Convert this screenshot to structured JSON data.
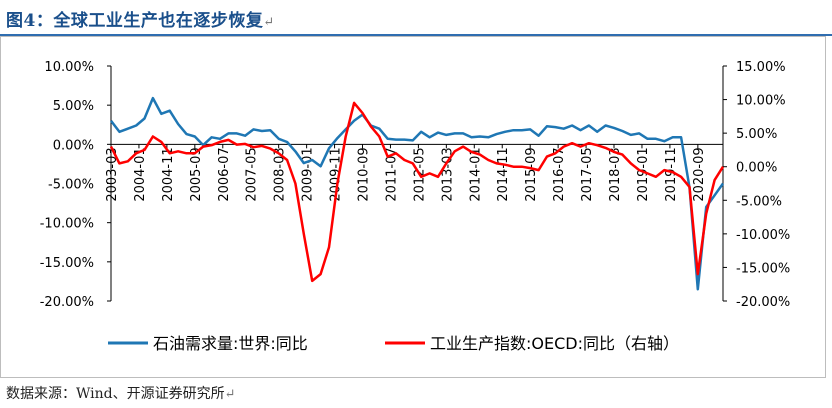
{
  "title": "图4：全球工业生产也在逐步恢复",
  "return_mark": "↵",
  "source": "数据来源：Wind、开源证券研究所",
  "chart_data": {
    "type": "line",
    "title": "",
    "xlabel": "",
    "ylabel": "",
    "grid": false,
    "legend_position": "bottom",
    "x_tick_labels": [
      "2003-03",
      "2004-01",
      "2004-11",
      "2005-09",
      "2006-07",
      "2007-05",
      "2008-03",
      "2009-01",
      "2009-11",
      "2010-09",
      "2011-07",
      "2012-05",
      "2013-03",
      "2014-01",
      "2014-11",
      "2015-09",
      "2016-07",
      "2017-05",
      "2018-03",
      "2019-01",
      "2019-11",
      "2020-09"
    ],
    "left_axis": {
      "ylim": [
        -20,
        10
      ],
      "ticks": [
        10,
        5,
        0,
        -5,
        -10,
        -15,
        -20
      ],
      "tick_labels": [
        "10.00%",
        "5.00%",
        "0.00%",
        "-5.00%",
        "-10.00%",
        "-15.00%",
        "-20.00%"
      ]
    },
    "right_axis": {
      "ylim": [
        -20,
        15
      ],
      "ticks": [
        15,
        10,
        5,
        0,
        -5,
        -10,
        -15,
        -20
      ],
      "tick_labels": [
        "15.00%",
        "10.00%",
        "5.00%",
        "0.00%",
        "-5.00%",
        "-10.00%",
        "-15.00%",
        "-20.00%"
      ]
    },
    "x_start": "2003-03",
    "months_per_point": 3,
    "series": [
      {
        "name": "石油需求量:世界:同比",
        "axis": "left",
        "color": "#1f77b4",
        "values": [
          3.0,
          1.6,
          2.0,
          2.4,
          3.3,
          5.9,
          3.9,
          4.3,
          2.6,
          1.3,
          1.0,
          -0.1,
          0.9,
          0.7,
          1.4,
          1.4,
          1.1,
          1.9,
          1.7,
          1.8,
          0.7,
          0.3,
          -0.9,
          -2.4,
          -2.0,
          -2.8,
          -0.5,
          0.8,
          1.9,
          3.0,
          3.8,
          2.4,
          2.0,
          0.7,
          0.6,
          0.6,
          0.5,
          1.6,
          0.9,
          1.5,
          1.2,
          1.4,
          1.4,
          0.9,
          1.0,
          0.9,
          1.3,
          1.6,
          1.8,
          1.8,
          1.9,
          1.1,
          2.3,
          2.2,
          2.0,
          2.4,
          1.8,
          2.4,
          1.6,
          2.4,
          2.1,
          1.7,
          1.2,
          1.4,
          0.7,
          0.7,
          0.4,
          0.9,
          0.9,
          -5.5,
          -18.5,
          -8.0,
          -6.5,
          -5.0
        ]
      },
      {
        "name": "工业生产指数:OECD:同比（右轴）",
        "axis": "right",
        "color": "#ff0000",
        "values": [
          3.0,
          0.5,
          0.8,
          2.0,
          2.5,
          4.5,
          3.7,
          2.0,
          2.3,
          2.0,
          2.0,
          3.0,
          3.2,
          3.7,
          4.0,
          3.3,
          3.4,
          2.9,
          3.1,
          2.7,
          2.0,
          1.0,
          -2.5,
          -10.0,
          -17.0,
          -16.0,
          -12.0,
          -2.5,
          4.5,
          9.5,
          8.0,
          6.0,
          4.5,
          1.5,
          2.0,
          1.0,
          0.5,
          -1.5,
          -1.0,
          -1.5,
          0.5,
          2.3,
          3.0,
          2.2,
          1.8,
          1.0,
          0.5,
          0.3,
          0.0,
          0.0,
          -0.2,
          -0.5,
          1.5,
          2.0,
          3.0,
          3.5,
          3.0,
          3.5,
          3.2,
          2.8,
          2.2,
          1.8,
          0.5,
          -0.5,
          -1.0,
          -1.5,
          -0.5,
          -0.8,
          -1.5,
          -3.0,
          -16.0,
          -7.0,
          -2.0,
          0.0
        ]
      }
    ]
  }
}
